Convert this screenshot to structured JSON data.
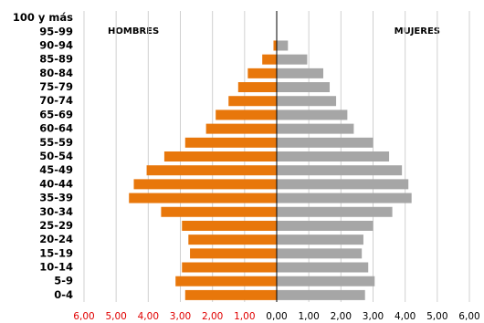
{
  "chart_data": {
    "type": "pyramid",
    "categories": [
      "100 y más",
      "95-99",
      "90-94",
      "85-89",
      "80-84",
      "75-79",
      "70-74",
      "65-69",
      "60-64",
      "55-59",
      "50-54",
      "45-49",
      "40-44",
      "35-39",
      "30-34",
      "25-29",
      "20-24",
      "15-19",
      "10-14",
      "5-9",
      "0-4"
    ],
    "series": [
      {
        "name": "HOMBRES",
        "color": "#e8770b",
        "side": "left",
        "values": [
          0,
          0,
          0.1,
          0.45,
          0.9,
          1.2,
          1.5,
          1.9,
          2.2,
          2.85,
          3.5,
          4.05,
          4.45,
          4.6,
          3.6,
          2.95,
          2.75,
          2.7,
          2.95,
          3.15,
          2.85
        ]
      },
      {
        "name": "MUJERES",
        "color": "#a6a6a6",
        "side": "right",
        "values": [
          0,
          0,
          0.35,
          0.95,
          1.45,
          1.65,
          1.85,
          2.2,
          2.4,
          3.0,
          3.5,
          3.9,
          4.1,
          4.2,
          3.6,
          3.0,
          2.7,
          2.65,
          2.85,
          3.05,
          2.75
        ]
      }
    ],
    "xlim": [
      0,
      6
    ],
    "xticks_left": [
      {
        "value": 6,
        "label": "6,00"
      },
      {
        "value": 5,
        "label": "5,00"
      },
      {
        "value": 4,
        "label": "4,00"
      },
      {
        "value": 3,
        "label": "3,00"
      },
      {
        "value": 2,
        "label": "2,00"
      },
      {
        "value": 1,
        "label": "1,00"
      }
    ],
    "xticks_right": [
      {
        "value": 0,
        "label": "0,00"
      },
      {
        "value": 1,
        "label": "1,00"
      },
      {
        "value": 2,
        "label": "2,00"
      },
      {
        "value": 3,
        "label": "3,00"
      },
      {
        "value": 4,
        "label": "4,00"
      },
      {
        "value": 5,
        "label": "5,00"
      },
      {
        "value": 6,
        "label": "6,00"
      }
    ],
    "left_tick_color": "#e00000",
    "right_tick_color": "#000000",
    "grid": true
  }
}
